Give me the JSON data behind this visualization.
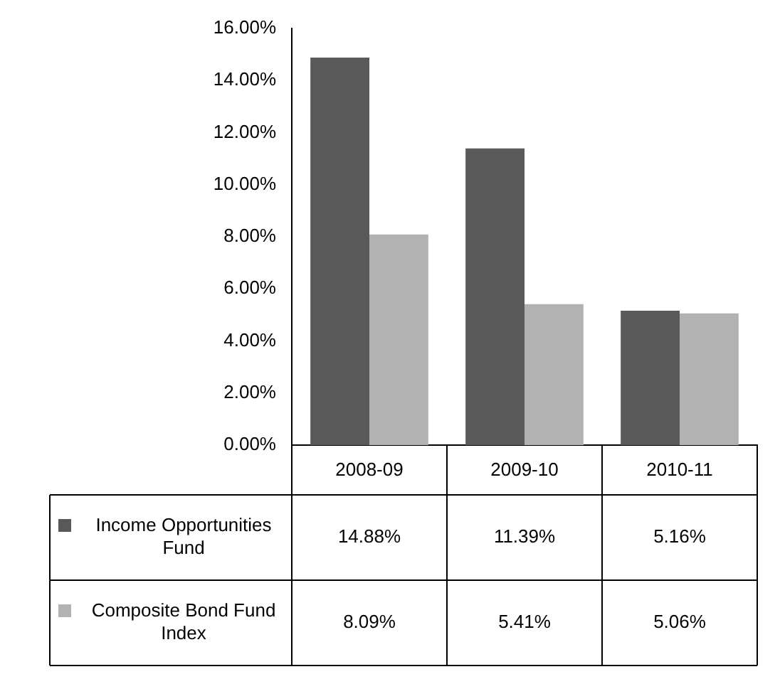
{
  "chart_data": {
    "type": "bar",
    "categories": [
      "2008-09",
      "2009-10",
      "2010-11"
    ],
    "series": [
      {
        "name": "Income Opportunities Fund",
        "color": "#595959",
        "values": [
          14.88,
          11.39,
          5.16
        ],
        "value_labels": [
          "14.88%",
          "11.39%",
          "5.16%"
        ]
      },
      {
        "name": "Composite Bond Fund Index",
        "color": "#b2b2b2",
        "values": [
          8.09,
          5.41,
          5.06
        ],
        "value_labels": [
          "8.09%",
          "5.41%",
          "5.06%"
        ]
      }
    ],
    "ylim": [
      0,
      16
    ],
    "yticks": [
      {
        "value": 0,
        "label": "0.00%"
      },
      {
        "value": 2,
        "label": "2.00%"
      },
      {
        "value": 4,
        "label": "4.00%"
      },
      {
        "value": 6,
        "label": "6.00%"
      },
      {
        "value": 8,
        "label": "8.00%"
      },
      {
        "value": 10,
        "label": "10.00%"
      },
      {
        "value": 12,
        "label": "12.00%"
      },
      {
        "value": 14,
        "label": "14.00%"
      },
      {
        "value": 16,
        "label": "16.00%"
      }
    ],
    "grid": false,
    "legend": "bottom"
  }
}
